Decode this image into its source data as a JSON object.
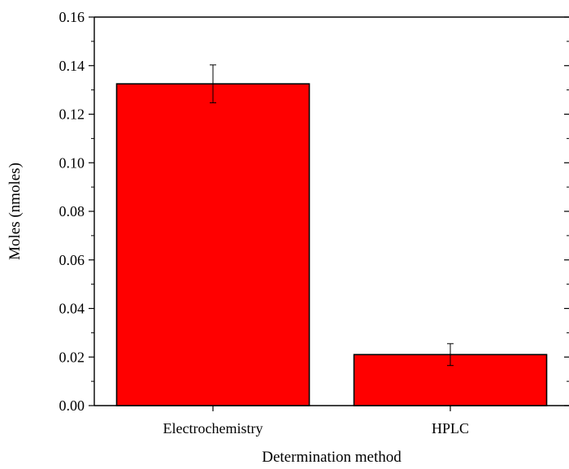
{
  "chart_data": {
    "type": "bar",
    "categories": [
      "Electrochemistry",
      "HPLC"
    ],
    "values": [
      0.1325,
      0.021
    ],
    "errors": [
      0.0078,
      0.0045
    ],
    "xlabel": "Determination method",
    "ylabel": "Moles (nmoles)",
    "ylim": [
      0,
      0.16
    ],
    "yticks": [
      "0.00",
      "0.02",
      "0.04",
      "0.06",
      "0.08",
      "0.10",
      "0.12",
      "0.14",
      "0.16"
    ],
    "grid": false,
    "bar_color": "#ff0000"
  }
}
